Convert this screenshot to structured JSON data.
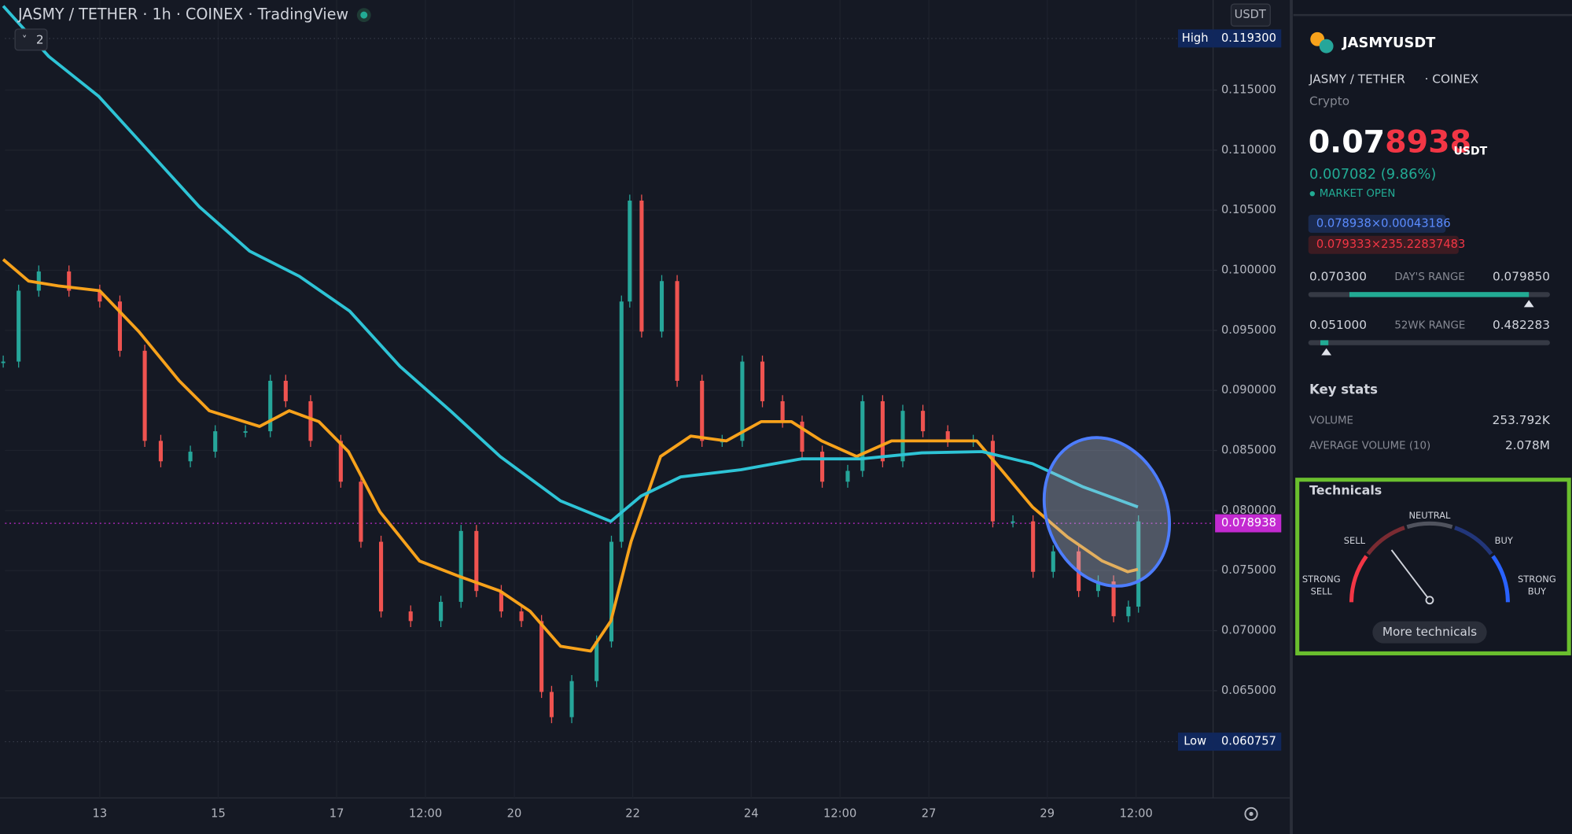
{
  "header": {
    "symbol_line": "JASMY / TETHER · 1h · COINEX · TradingView",
    "indicator_count": "2",
    "currency": "USDT"
  },
  "chart_data": {
    "type": "line",
    "xlim": [
      11.4,
      31.8
    ],
    "xticks": [
      13,
      15,
      17,
      {
        "value": 18.5,
        "label": "12:00"
      },
      20,
      22,
      24,
      {
        "value": 25.5,
        "label": "12:00"
      },
      27,
      29,
      {
        "value": 30.5,
        "label": "12:00"
      }
    ],
    "ylim": [
      0.05608,
      0.1225
    ],
    "yticks": [
      {
        "value": 0.065,
        "label": "0.065000"
      },
      {
        "value": 0.07,
        "label": "0.070000"
      },
      {
        "value": 0.075,
        "label": "0.075000"
      },
      {
        "value": 0.08,
        "label": "0.080000"
      },
      {
        "value": 0.085,
        "label": "0.085000"
      },
      {
        "value": 0.09,
        "label": "0.090000"
      },
      {
        "value": 0.095,
        "label": "0.095000"
      },
      {
        "value": 0.1,
        "label": "0.100000"
      },
      {
        "value": 0.105,
        "label": "0.105000"
      },
      {
        "value": 0.11,
        "label": "0.110000"
      },
      {
        "value": 0.115,
        "label": "0.115000"
      }
    ],
    "grid": true,
    "series": [
      {
        "type": "candlestick",
        "up_color": "#26a69a",
        "down_color": "#ef5350",
        "x": [
          11.37,
          11.63,
          11.97,
          12.48,
          13.0,
          13.34,
          13.76,
          14.03,
          14.53,
          14.95,
          15.46,
          15.88,
          16.14,
          16.56,
          17.07,
          17.41,
          17.75,
          18.25,
          18.76,
          19.1,
          19.36,
          19.78,
          20.12,
          20.46,
          20.63,
          20.97,
          21.39,
          21.64,
          21.81,
          21.95,
          22.15,
          22.49,
          22.75,
          23.17,
          23.51,
          23.85,
          24.19,
          24.53,
          24.86,
          25.2,
          25.63,
          25.88,
          26.22,
          26.56,
          26.9,
          27.32,
          27.75,
          28.08,
          28.42,
          28.76,
          29.1,
          29.53,
          29.86,
          30.12,
          30.37,
          30.54
        ],
        "values": [
          0.0924,
          0.0983,
          0.0999,
          0.0983,
          0.0974,
          0.0933,
          0.0858,
          0.0841,
          0.0849,
          0.0866,
          0.0866,
          0.0908,
          0.0891,
          0.0858,
          0.0824,
          0.0774,
          0.0716,
          0.0708,
          0.0724,
          0.0783,
          0.0733,
          0.0716,
          0.0708,
          0.0649,
          0.0628,
          0.0658,
          0.0691,
          0.0774,
          0.0974,
          0.1058,
          0.0949,
          0.0991,
          0.0908,
          0.0858,
          0.0858,
          0.0924,
          0.0891,
          0.0874,
          0.0849,
          0.0824,
          0.0833,
          0.0891,
          0.0841,
          0.0883,
          0.0866,
          0.0858,
          0.0858,
          0.0791,
          0.0791,
          0.0749,
          0.0766,
          0.0733,
          0.0741,
          0.0712,
          0.072,
          0.0791
        ]
      },
      {
        "type": "line",
        "color": "#f7a21b",
        "x": [
          11.37,
          11.8,
          12.3,
          13.0,
          13.66,
          14.34,
          14.85,
          15.7,
          16.2,
          16.7,
          17.2,
          17.73,
          18.4,
          19.08,
          19.76,
          20.27,
          20.78,
          21.29,
          21.63,
          21.97,
          22.47,
          22.98,
          23.58,
          24.17,
          24.68,
          25.19,
          25.78,
          26.37,
          27.22,
          27.81,
          28.24,
          28.75,
          29.34,
          29.93,
          30.36,
          30.53
        ],
        "values": [
          0.1009,
          0.0991,
          0.0987,
          0.0983,
          0.0949,
          0.0908,
          0.0883,
          0.087,
          0.0883,
          0.0874,
          0.0849,
          0.0799,
          0.0758,
          0.0745,
          0.0733,
          0.0716,
          0.0687,
          0.0683,
          0.0708,
          0.0774,
          0.0845,
          0.0862,
          0.0858,
          0.0874,
          0.0874,
          0.0858,
          0.0845,
          0.0858,
          0.0858,
          0.0858,
          0.0833,
          0.0803,
          0.0778,
          0.0758,
          0.0749,
          0.0751
        ]
      },
      {
        "type": "line",
        "color": "#2ec4d6",
        "x": [
          11.37,
          12.14,
          12.98,
          13.83,
          14.68,
          15.53,
          16.37,
          17.22,
          18.07,
          18.92,
          19.76,
          20.78,
          21.63,
          22.14,
          22.81,
          23.83,
          24.85,
          25.86,
          26.88,
          27.9,
          28.75,
          29.59,
          30.53
        ],
        "values": [
          0.122,
          0.1178,
          0.1145,
          0.1099,
          0.1053,
          0.1016,
          0.0995,
          0.0966,
          0.092,
          0.0883,
          0.0845,
          0.0808,
          0.0791,
          0.0812,
          0.0828,
          0.0834,
          0.0843,
          0.0843,
          0.0848,
          0.0849,
          0.0839,
          0.082,
          0.0803
        ]
      }
    ],
    "high": {
      "label": "High",
      "value": 0.1193,
      "value_label": "0.119300"
    },
    "low": {
      "label": "Low",
      "value": 0.060757,
      "value_label": "0.060757"
    },
    "last": {
      "value": 0.078938,
      "value_label": "0.078938",
      "color": "#c32ad1"
    }
  },
  "panel": {
    "symbol": "JASMYUSDT",
    "pair": "JASMY / TETHER",
    "exchange": "· COINEX",
    "category": "Crypto",
    "price_main": "0.07",
    "price_tail": "8938",
    "price_unit": "USDT",
    "change": "0.007082 (9.86%)",
    "status": "MARKET OPEN",
    "bid": "0.078938×0.00043186",
    "ask": "0.079333×235.22837483",
    "day_low": "0.070300",
    "day_label": "DAY'S RANGE",
    "day_high": "0.079850",
    "wk_low": "0.051000",
    "wk_label": "52WK RANGE",
    "wk_high": "0.482283",
    "key_stats": "Key stats",
    "volume_label": "VOLUME",
    "volume": "253.792K",
    "avg_volume_label": "AVERAGE VOLUME (10)",
    "avg_volume": "2.078M",
    "technicals": {
      "title": "Technicals",
      "strong_sell": [
        "STRONG",
        "SELL"
      ],
      "sell": "SELL",
      "neutral": "NEUTRAL",
      "buy": "BUY",
      "strong_buy": [
        "STRONG",
        "BUY"
      ],
      "button": "More technicals"
    }
  }
}
